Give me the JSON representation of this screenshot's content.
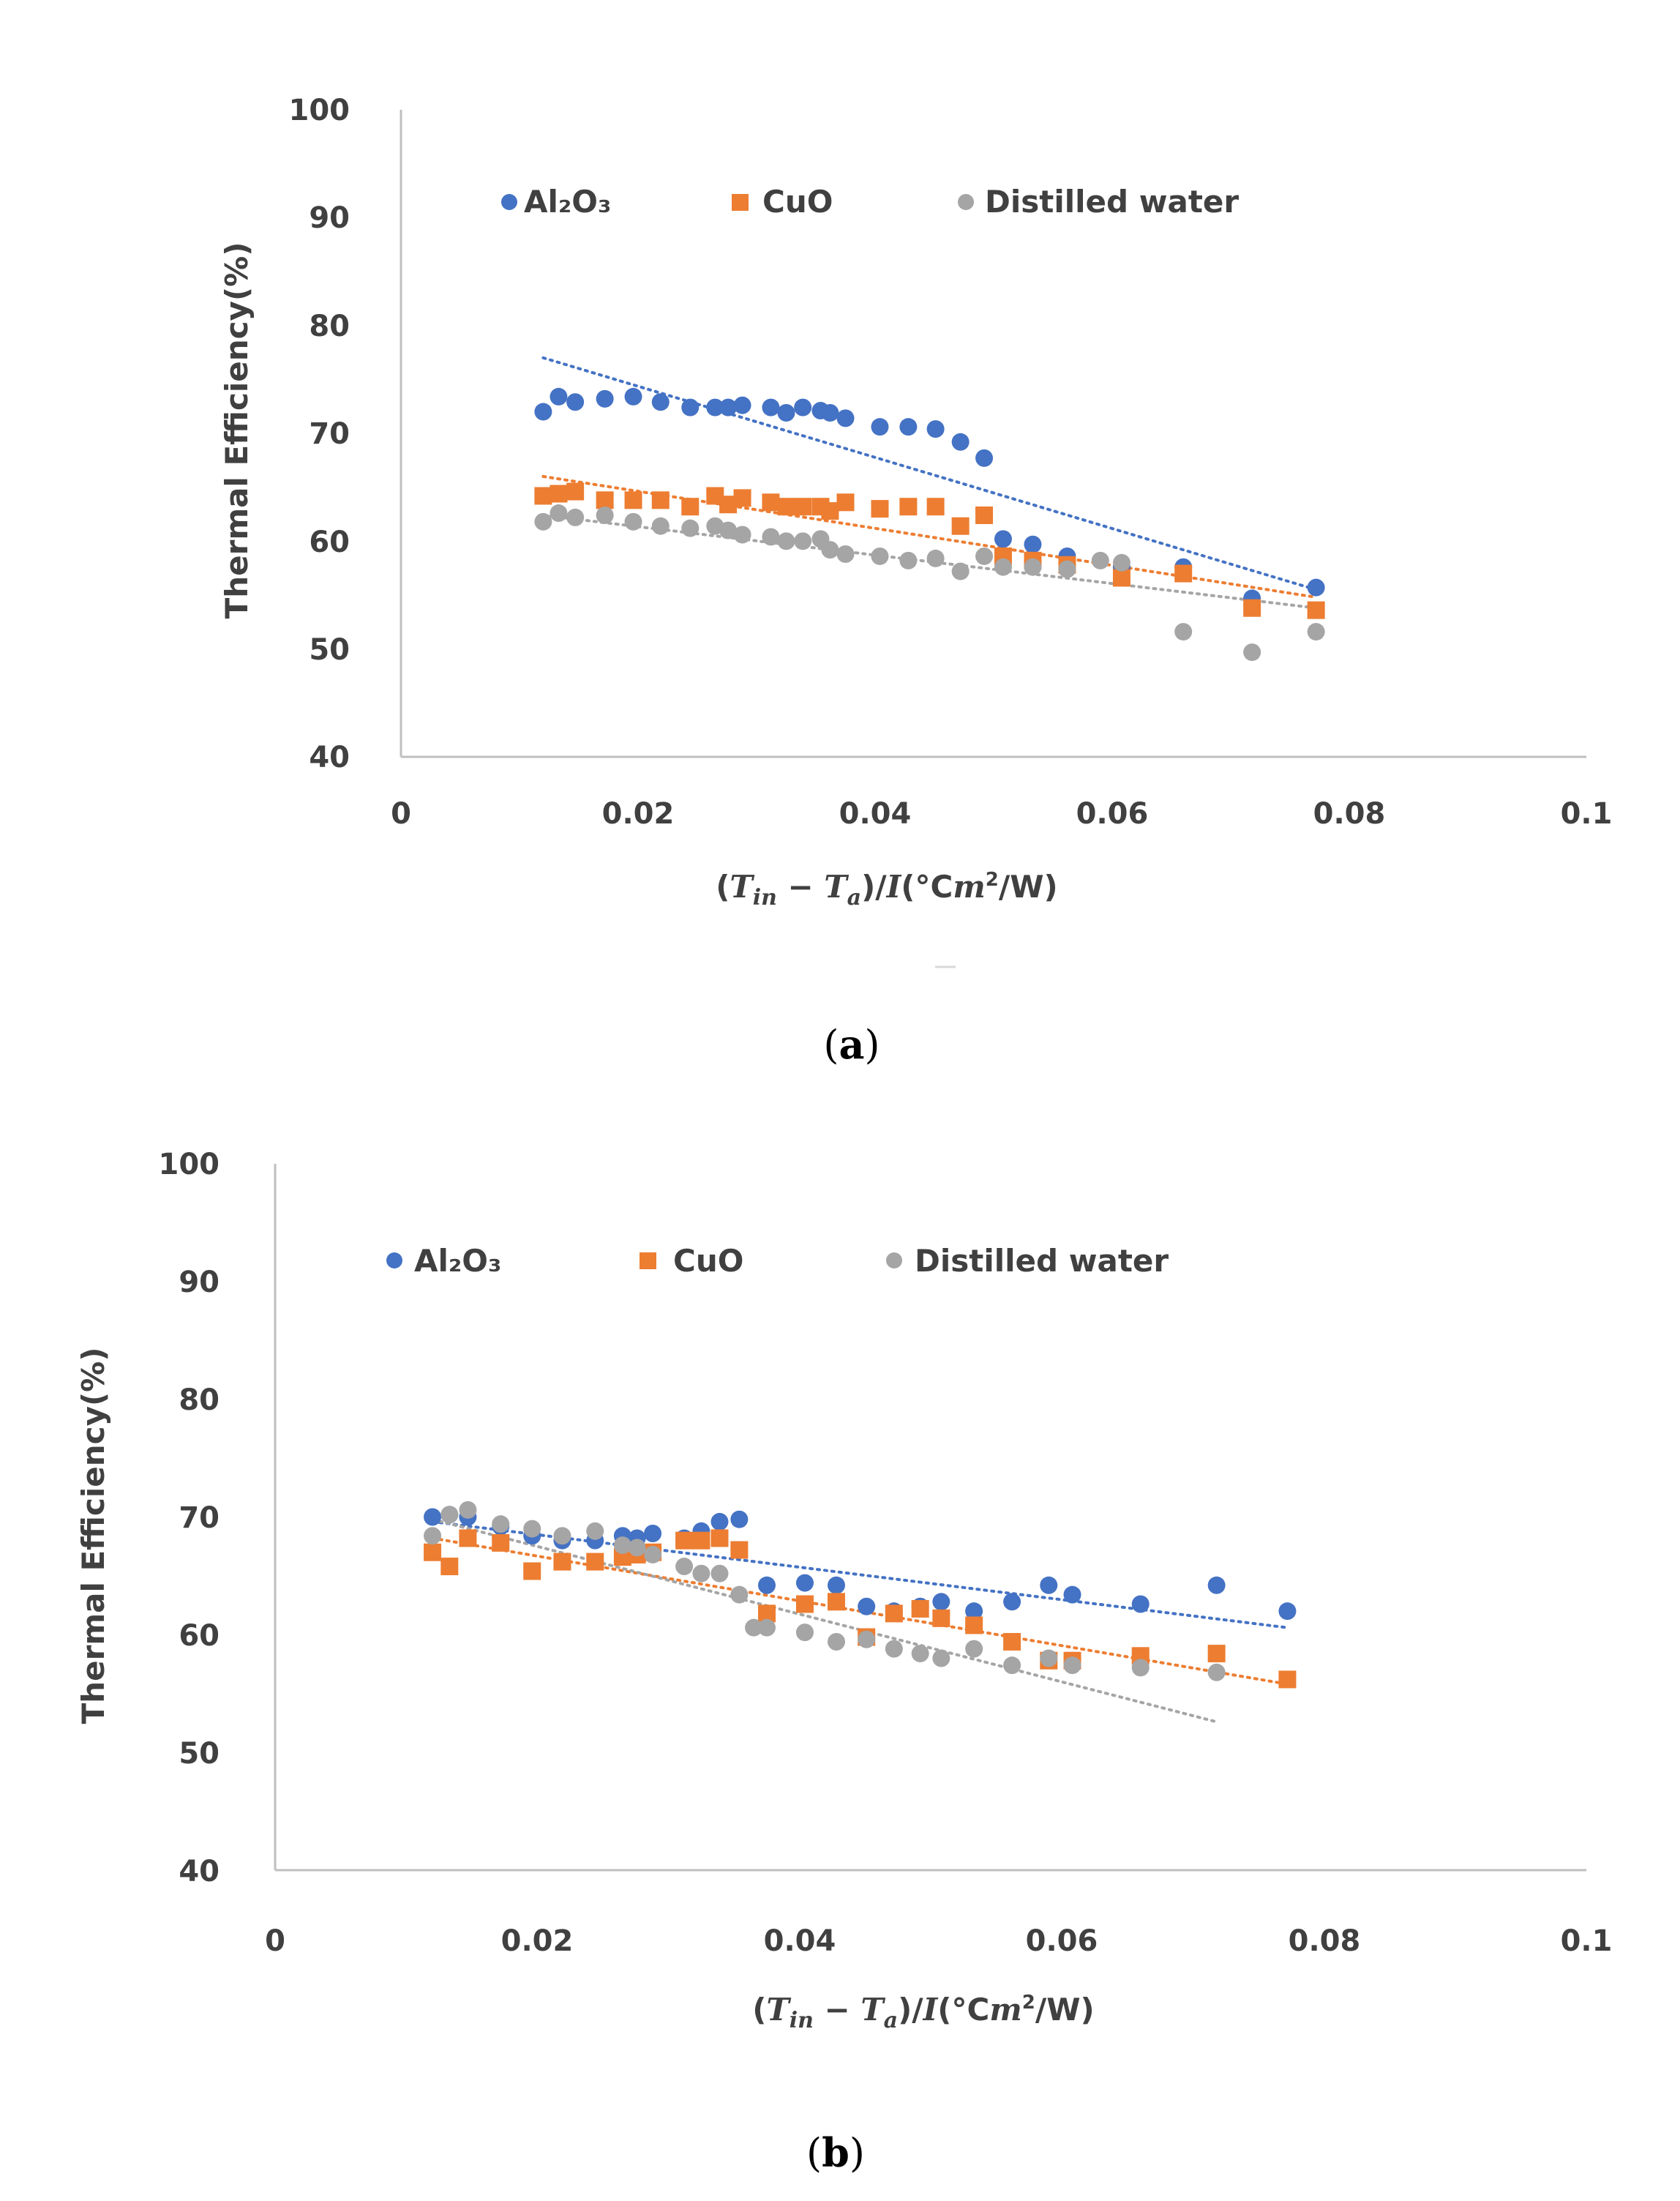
{
  "colors": {
    "al2o3": "#4472C4",
    "cuo": "#ED7D31",
    "water": "#A5A5A5",
    "axis": "#BFBFBF",
    "text": "#404040"
  },
  "chart_data": [
    {
      "panel_label": "a",
      "type": "scatter",
      "ylabel": "Thermal Efficiency(%)",
      "xlabel": {
        "open": "(",
        "t1": "T",
        "s1": "in",
        "minus": " − ",
        "t2": "T",
        "s2": "a",
        "mid": ")/",
        "i": "I",
        "unit": "(°C",
        "m": "m",
        "sup": "2",
        "tail": "/W)"
      },
      "xlim": [
        0,
        0.1
      ],
      "ylim": [
        40,
        100
      ],
      "xticks": [
        "0",
        "0.02",
        "0.04",
        "0.06",
        "0.08",
        "0.1"
      ],
      "yticks": [
        "40",
        "50",
        "60",
        "70",
        "80",
        "90",
        "100"
      ],
      "legend_position": "top",
      "series": [
        {
          "name": "Al₂O₃",
          "marker": "circle",
          "color": "#4472C4",
          "x": [
            0.012,
            0.0133,
            0.0147,
            0.0172,
            0.0196,
            0.0219,
            0.0244,
            0.0265,
            0.0276,
            0.0288,
            0.0312,
            0.0325,
            0.0339,
            0.0354,
            0.0362,
            0.0375,
            0.0404,
            0.0428,
            0.0451,
            0.0472,
            0.0492,
            0.0508,
            0.0533,
            0.0562,
            0.0608,
            0.066,
            0.0718,
            0.0772
          ],
          "y": [
            72.0,
            73.4,
            72.9,
            73.2,
            73.4,
            72.9,
            72.4,
            72.4,
            72.4,
            72.6,
            72.4,
            71.9,
            72.4,
            72.1,
            71.9,
            71.4,
            70.6,
            70.6,
            70.4,
            69.2,
            67.7,
            60.2,
            59.7,
            58.6,
            57.6,
            57.6,
            54.7,
            55.7
          ],
          "trend": [
            77.0,
            55.5
          ]
        },
        {
          "name": "CuO",
          "marker": "square",
          "color": "#ED7D31",
          "x": [
            0.012,
            0.0133,
            0.0147,
            0.0172,
            0.0196,
            0.0219,
            0.0244,
            0.0265,
            0.0276,
            0.0288,
            0.0312,
            0.0325,
            0.0339,
            0.0354,
            0.0362,
            0.0375,
            0.0404,
            0.0428,
            0.0451,
            0.0472,
            0.0492,
            0.0508,
            0.0533,
            0.0562,
            0.0608,
            0.066,
            0.0718,
            0.0772
          ],
          "y": [
            64.2,
            64.4,
            64.6,
            63.8,
            63.8,
            63.8,
            63.2,
            64.2,
            63.4,
            64.0,
            63.6,
            63.2,
            63.2,
            63.2,
            62.8,
            63.6,
            63.0,
            63.2,
            63.2,
            61.4,
            62.4,
            58.6,
            58.2,
            57.8,
            56.6,
            57.0,
            53.8,
            53.6
          ],
          "trend": [
            66.0,
            54.8
          ]
        },
        {
          "name": "Distilled water",
          "marker": "circle",
          "color": "#A5A5A5",
          "x": [
            0.012,
            0.0133,
            0.0147,
            0.0172,
            0.0196,
            0.0219,
            0.0244,
            0.0265,
            0.0276,
            0.0288,
            0.0312,
            0.0325,
            0.0339,
            0.0354,
            0.0362,
            0.0375,
            0.0404,
            0.0428,
            0.0451,
            0.0472,
            0.0492,
            0.0508,
            0.0533,
            0.0562,
            0.059,
            0.0608,
            0.066,
            0.0718,
            0.0772
          ],
          "y": [
            61.8,
            62.6,
            62.2,
            62.4,
            61.8,
            61.4,
            61.2,
            61.4,
            61.0,
            60.6,
            60.4,
            60.0,
            60.0,
            60.2,
            59.2,
            58.8,
            58.6,
            58.2,
            58.4,
            57.2,
            58.6,
            57.6,
            57.6,
            57.4,
            58.2,
            58.0,
            51.6,
            49.7,
            51.6
          ],
          "trend": [
            62.4,
            53.8
          ]
        }
      ]
    },
    {
      "panel_label": "b",
      "type": "scatter",
      "ylabel": "Thermal Efficiency(%)",
      "xlabel": {
        "open": "(",
        "t1": "T",
        "s1": "in",
        "minus": " − ",
        "t2": "T",
        "s2": "a",
        "mid": ")/",
        "i": "I",
        "unit": "(°C",
        "m": "m",
        "sup": "2",
        "tail": "/W)"
      },
      "xlim": [
        0,
        0.1
      ],
      "ylim": [
        40,
        100
      ],
      "xticks": [
        "0",
        "0.02",
        "0.04",
        "0.06",
        "0.08",
        "0.1"
      ],
      "yticks": [
        "40",
        "50",
        "60",
        "70",
        "80",
        "90",
        "100"
      ],
      "legend_position": "top",
      "series": [
        {
          "name": "Al₂O₃",
          "marker": "circle",
          "color": "#4472C4",
          "x": [
            0.012,
            0.0133,
            0.0147,
            0.0172,
            0.0196,
            0.0219,
            0.0244,
            0.0265,
            0.0276,
            0.0288,
            0.0312,
            0.0325,
            0.0339,
            0.0354,
            0.0375,
            0.0404,
            0.0428,
            0.0451,
            0.0472,
            0.0492,
            0.0508,
            0.0533,
            0.0562,
            0.059,
            0.0608,
            0.066,
            0.0718,
            0.0772
          ],
          "y": [
            70.0,
            70.2,
            70.0,
            69.2,
            68.4,
            68.0,
            68.0,
            68.4,
            68.2,
            68.6,
            68.2,
            68.8,
            69.6,
            69.8,
            64.2,
            64.4,
            64.2,
            62.4,
            62.0,
            62.4,
            62.8,
            62.0,
            62.8,
            64.2,
            63.4,
            62.6,
            64.2,
            62.0
          ],
          "trend": [
            69.6,
            60.6
          ]
        },
        {
          "name": "CuO",
          "marker": "square",
          "color": "#ED7D31",
          "x": [
            0.012,
            0.0133,
            0.0147,
            0.0172,
            0.0196,
            0.0219,
            0.0244,
            0.0265,
            0.0276,
            0.0288,
            0.0312,
            0.0325,
            0.0339,
            0.0354,
            0.0375,
            0.0404,
            0.0428,
            0.0451,
            0.0472,
            0.0492,
            0.0508,
            0.0533,
            0.0562,
            0.059,
            0.0608,
            0.066,
            0.0718,
            0.0772
          ],
          "y": [
            67.0,
            65.8,
            68.2,
            67.8,
            65.4,
            66.2,
            66.2,
            66.6,
            66.8,
            67.0,
            68.0,
            68.0,
            68.2,
            67.2,
            61.8,
            62.6,
            62.8,
            59.8,
            61.8,
            62.2,
            61.4,
            60.8,
            59.4,
            57.8,
            57.8,
            58.2,
            58.4,
            56.2
          ],
          "trend": [
            68.2,
            55.8
          ]
        },
        {
          "name": "Distilled water",
          "marker": "circle",
          "color": "#A5A5A5",
          "x": [
            0.012,
            0.0133,
            0.0147,
            0.0172,
            0.0196,
            0.0219,
            0.0244,
            0.0265,
            0.0276,
            0.0288,
            0.0312,
            0.0325,
            0.0339,
            0.0354,
            0.0365,
            0.0375,
            0.0404,
            0.0428,
            0.0451,
            0.0472,
            0.0492,
            0.0508,
            0.0533,
            0.0562,
            0.059,
            0.0608,
            0.066,
            0.0718
          ],
          "y": [
            68.4,
            70.2,
            70.6,
            69.4,
            69.0,
            68.4,
            68.8,
            67.6,
            67.4,
            66.8,
            65.8,
            65.2,
            65.2,
            63.4,
            60.6,
            60.6,
            60.2,
            59.4,
            59.6,
            58.8,
            58.4,
            58.0,
            58.8,
            57.4,
            58.0,
            57.4,
            57.2,
            56.8
          ],
          "trend": [
            69.8,
            52.6
          ]
        }
      ]
    }
  ]
}
